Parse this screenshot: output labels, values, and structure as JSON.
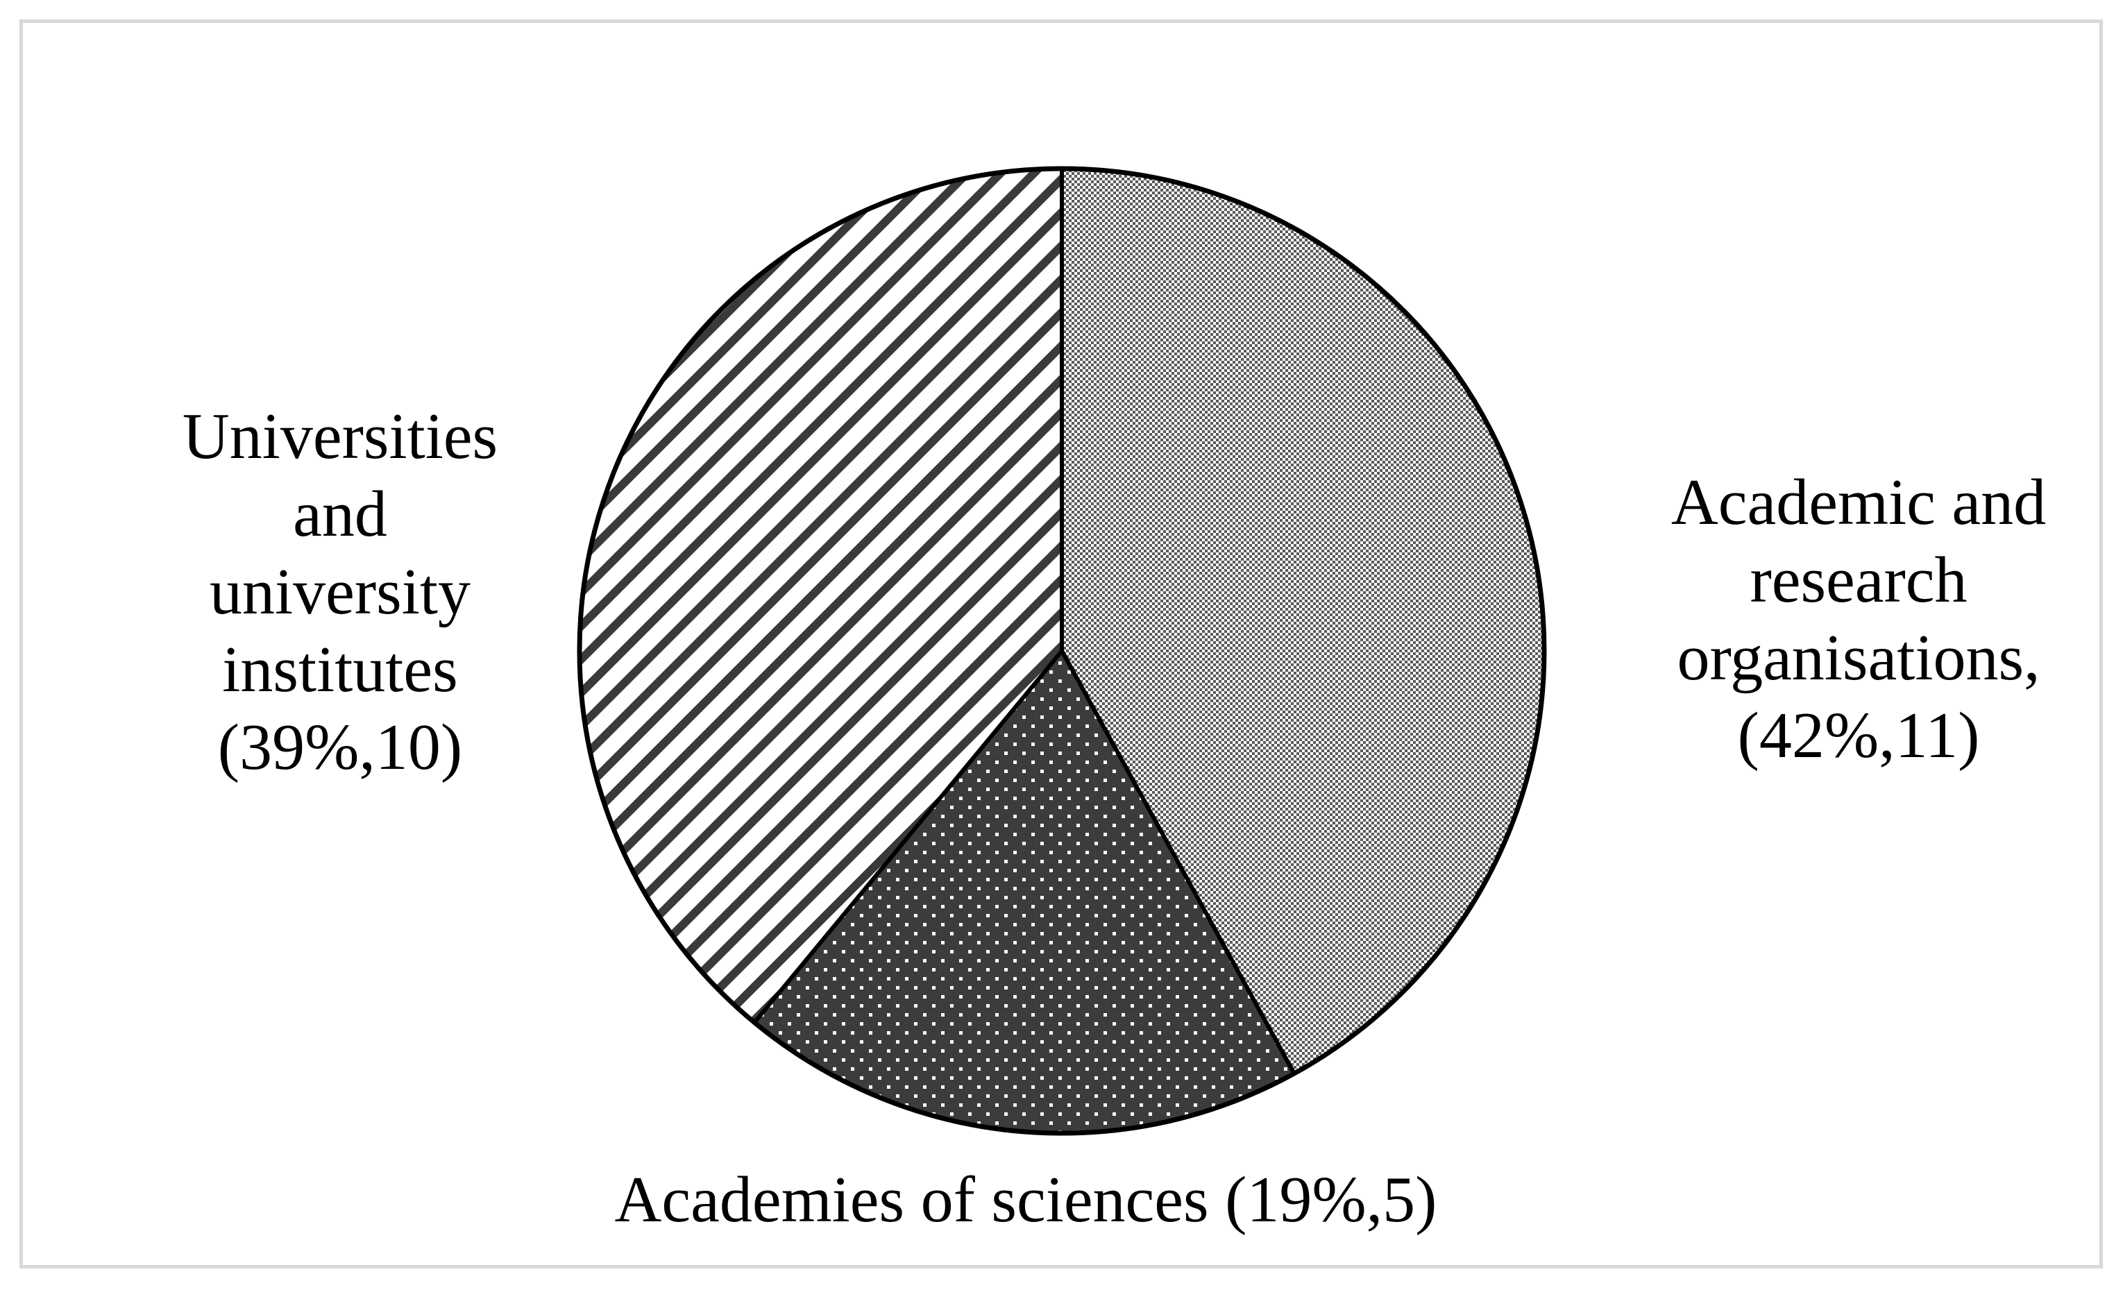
{
  "chart_data": {
    "type": "pie",
    "slices": [
      {
        "name": "Academic and research organisations",
        "label_lines": [
          "Academic and",
          "research",
          "organisations,",
          "(42%,11)"
        ],
        "percent": 42,
        "count": 11,
        "pattern": "fine-checker-gray"
      },
      {
        "name": "Academies of sciences",
        "label_lines": [
          "Academies of sciences (19%,5)"
        ],
        "percent": 19,
        "count": 5,
        "pattern": "dark-dotted"
      },
      {
        "name": "Universities and university institutes",
        "label_lines": [
          "Universities",
          "and",
          "university",
          "institutes",
          "(39%,10)"
        ],
        "percent": 39,
        "count": 10,
        "pattern": "diagonal-stripes"
      }
    ],
    "start_angle": "12 o'clock",
    "direction": "clockwise",
    "legend": "none",
    "colors": {
      "outline": "#000000",
      "dark_fill": "#3c3c3c",
      "frame_border": "#d9d9d9"
    }
  }
}
